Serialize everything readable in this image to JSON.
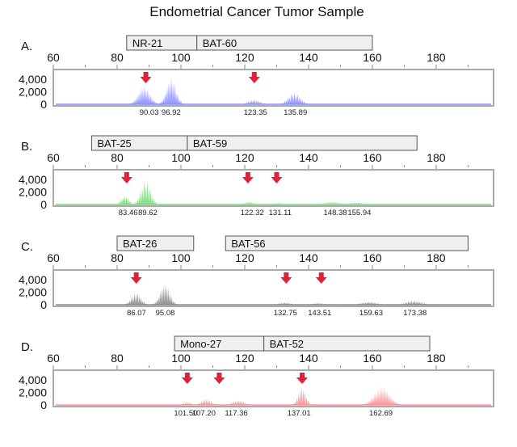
{
  "chart_data": {
    "type": "line",
    "title": "Endometrial Cancer Tumor Sample",
    "xlim": [
      60,
      198
    ],
    "xticks": [
      "60",
      "80",
      "100",
      "120",
      "140",
      "160",
      "180"
    ],
    "yticks": [
      "4,000",
      "2,000",
      "0"
    ],
    "ylim": [
      0,
      5400
    ],
    "panels": [
      {
        "label": "A.",
        "color": "#8a8cff",
        "markers": [
          {
            "name": "NR-21",
            "range": [
              83,
              105
            ]
          },
          {
            "name": "BAT-60",
            "range": [
              105,
              160
            ]
          }
        ],
        "peaks": [
          {
            "center": 88.5,
            "height": 3000,
            "spread": 3
          },
          {
            "center": 97,
            "height": 4300,
            "spread": 2.5
          },
          {
            "center": 123,
            "height": 800,
            "spread": 3
          },
          {
            "center": 135.5,
            "height": 2000,
            "spread": 3
          }
        ],
        "peak_labels": [
          "90.03",
          "96.92",
          "123.35",
          "135.89"
        ],
        "peak_label_pos": [
          90.03,
          96.92,
          123.35,
          135.89
        ],
        "arrows": [
          89,
          123
        ]
      },
      {
        "label": "B.",
        "color": "#7fd67f",
        "markers": [
          {
            "name": "BAT-25",
            "range": [
              72,
              102
            ]
          },
          {
            "name": "BAT-59",
            "range": [
              102,
              174
            ]
          }
        ],
        "peaks": [
          {
            "center": 82.5,
            "height": 1500,
            "spread": 2
          },
          {
            "center": 89,
            "height": 4000,
            "spread": 2.5
          },
          {
            "center": 121.5,
            "height": 500,
            "spread": 2.5
          },
          {
            "center": 130.5,
            "height": 300,
            "spread": 2.5
          },
          {
            "center": 147.5,
            "height": 500,
            "spread": 4
          },
          {
            "center": 155,
            "height": 400,
            "spread": 3
          }
        ],
        "peak_labels": [
          "83.46",
          "89.62",
          "122.32",
          "131.11",
          "148.38",
          "155.94"
        ],
        "peak_label_pos": [
          83.46,
          89.62,
          122.32,
          131.11,
          148.38,
          155.94
        ],
        "arrows": [
          83,
          121,
          130
        ]
      },
      {
        "label": "C.",
        "color": "#8a8a8a",
        "markers": [
          {
            "name": "BAT-26",
            "range": [
              80,
              104
            ]
          },
          {
            "name": "BAT-56",
            "range": [
              114,
              190
            ]
          }
        ],
        "peaks": [
          {
            "center": 86,
            "height": 2000,
            "spread": 2.5
          },
          {
            "center": 95,
            "height": 3500,
            "spread": 2.5
          },
          {
            "center": 132.5,
            "height": 400,
            "spread": 3
          },
          {
            "center": 143,
            "height": 300,
            "spread": 3
          },
          {
            "center": 159,
            "height": 500,
            "spread": 4
          },
          {
            "center": 173,
            "height": 700,
            "spread": 4
          }
        ],
        "peak_labels": [
          "86.07",
          "95.08",
          "132.75",
          "143.51",
          "159.63",
          "173.38"
        ],
        "peak_label_pos": [
          86.07,
          95.08,
          132.75,
          143.51,
          159.63,
          173.38
        ],
        "arrows": [
          86,
          133,
          144
        ]
      },
      {
        "label": "D.",
        "color": "#ff8f95",
        "markers": [
          {
            "name": "Mono-27",
            "range": [
              98,
              126
            ]
          },
          {
            "name": "BAT-52",
            "range": [
              126,
              178
            ]
          }
        ],
        "peaks": [
          {
            "center": 102,
            "height": 500,
            "spread": 2
          },
          {
            "center": 108,
            "height": 1000,
            "spread": 2.5
          },
          {
            "center": 118,
            "height": 800,
            "spread": 3
          },
          {
            "center": 138,
            "height": 3000,
            "spread": 2
          },
          {
            "center": 163,
            "height": 3000,
            "spread": 4
          }
        ],
        "peak_labels": [
          "101.50",
          "107.20",
          "117.36",
          "137.01",
          "162.69"
        ],
        "peak_label_pos": [
          101.5,
          107.2,
          117.36,
          137.01,
          162.69
        ],
        "arrows": [
          102,
          112,
          138
        ]
      }
    ]
  }
}
